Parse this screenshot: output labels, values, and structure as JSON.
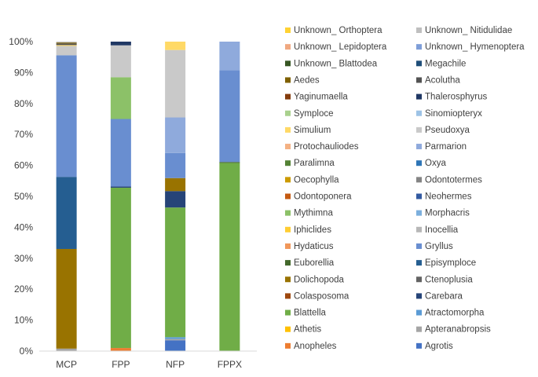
{
  "chart_data": {
    "type": "bar",
    "stacked": true,
    "normalized": true,
    "categories": [
      "MCP",
      "FPP",
      "NFP",
      "FPPX"
    ],
    "ylim": [
      0,
      100
    ],
    "yticks": [
      "0%",
      "10%",
      "20%",
      "30%",
      "40%",
      "50%",
      "60%",
      "70%",
      "80%",
      "90%",
      "100%"
    ],
    "grid": false,
    "legend_position": "right",
    "series": [
      {
        "name": "Agrotis",
        "color": "#4472C4",
        "values": [
          0,
          0,
          3.5,
          0
        ]
      },
      {
        "name": "Anopheles",
        "color": "#ED7D31",
        "values": [
          0,
          1.0,
          0,
          0
        ]
      },
      {
        "name": "Apteranabropsis",
        "color": "#A5A5A5",
        "values": [
          0.8,
          0,
          0.4,
          0
        ]
      },
      {
        "name": "Athetis",
        "color": "#FFC000",
        "values": [
          0,
          0,
          0,
          0
        ]
      },
      {
        "name": "Atractomorpha",
        "color": "#5B9BD5",
        "values": [
          0,
          0,
          0.6,
          0
        ]
      },
      {
        "name": "Blattella",
        "color": "#70AD47",
        "values": [
          0,
          51.8,
          41.9,
          60.8
        ]
      },
      {
        "name": "Carebara",
        "color": "#264478",
        "values": [
          0,
          0.4,
          5.3,
          0
        ]
      },
      {
        "name": "Colasposoma",
        "color": "#9E480E",
        "values": [
          0,
          0,
          0,
          0
        ]
      },
      {
        "name": "Ctenoplusia",
        "color": "#636363",
        "values": [
          0,
          0,
          0,
          0
        ]
      },
      {
        "name": "Dolichopoda",
        "color": "#997300",
        "values": [
          32.2,
          0,
          4.2,
          0
        ]
      },
      {
        "name": "Episymploce",
        "color": "#255E91",
        "values": [
          23.3,
          0,
          0,
          0
        ]
      },
      {
        "name": "Euborellia",
        "color": "#43682B",
        "values": [
          0,
          0,
          0,
          0.3
        ]
      },
      {
        "name": "Gryllus",
        "color": "#698ED0",
        "values": [
          39.3,
          21.8,
          8.1,
          29.7
        ]
      },
      {
        "name": "Hydaticus",
        "color": "#F1975A",
        "values": [
          0,
          0,
          0,
          0
        ]
      },
      {
        "name": "Inocellia",
        "color": "#B7B7B7",
        "values": [
          0,
          0,
          0,
          0
        ]
      },
      {
        "name": "Iphiclides",
        "color": "#FFCD33",
        "values": [
          0,
          0,
          0,
          0
        ]
      },
      {
        "name": "Morphacris",
        "color": "#7CAFDD",
        "values": [
          0,
          0,
          0,
          0
        ]
      },
      {
        "name": "Mythimna",
        "color": "#8CC168",
        "values": [
          0,
          13.5,
          0,
          0
        ]
      },
      {
        "name": "Neohermes",
        "color": "#335AA1",
        "values": [
          0,
          0,
          0,
          0
        ]
      },
      {
        "name": "Odontoponera",
        "color": "#C55A11",
        "values": [
          0,
          0,
          0,
          0
        ]
      },
      {
        "name": "Odontotermes",
        "color": "#848484",
        "values": [
          0,
          0,
          0,
          0
        ]
      },
      {
        "name": "Oecophylla",
        "color": "#CC9A00",
        "values": [
          0,
          0,
          0,
          0
        ]
      },
      {
        "name": "Oxya",
        "color": "#2E75B6",
        "values": [
          0,
          0,
          0,
          0
        ]
      },
      {
        "name": "Paralimna",
        "color": "#548235",
        "values": [
          0,
          0,
          0,
          0
        ]
      },
      {
        "name": "Parmarion",
        "color": "#8FAADC",
        "values": [
          0,
          0,
          11.5,
          9.2
        ]
      },
      {
        "name": "Protochauliodes",
        "color": "#F4B183",
        "values": [
          0,
          0,
          0,
          0
        ]
      },
      {
        "name": "Pseudoxya",
        "color": "#C9C9C9",
        "values": [
          3.0,
          10.3,
          21.8,
          0
        ]
      },
      {
        "name": "Simulium",
        "color": "#FFD966",
        "values": [
          0.3,
          0,
          2.7,
          0
        ]
      },
      {
        "name": "Sinomiopteryx",
        "color": "#9DC3E6",
        "values": [
          0,
          0,
          0,
          0
        ]
      },
      {
        "name": "Symploce",
        "color": "#A9D18E",
        "values": [
          0,
          0,
          0,
          0
        ]
      },
      {
        "name": "Thalerosphyrus",
        "color": "#203864",
        "values": [
          0,
          1.2,
          0,
          0
        ]
      },
      {
        "name": "Yaginumaella",
        "color": "#843C0C",
        "values": [
          0,
          0,
          0,
          0
        ]
      },
      {
        "name": "Acolutha",
        "color": "#525252",
        "values": [
          0.5,
          0,
          0,
          0
        ]
      },
      {
        "name": "Aedes",
        "color": "#7F6000",
        "values": [
          0.3,
          0,
          0,
          0
        ]
      },
      {
        "name": "Megachile",
        "color": "#1F4E79",
        "values": [
          0,
          0,
          0,
          0
        ]
      },
      {
        "name": "Unknown_ Blattodea",
        "color": "#375623",
        "values": [
          0,
          0,
          0,
          0
        ]
      },
      {
        "name": "Unknown_ Hymenoptera",
        "color": "#7E9ED8",
        "values": [
          0,
          0,
          0,
          0
        ]
      },
      {
        "name": "Unknown_ Lepidoptera",
        "color": "#F0A880",
        "values": [
          0,
          0,
          0,
          0
        ]
      },
      {
        "name": "Unknown_ Nitidulidae",
        "color": "#BFBFBF",
        "values": [
          0.3,
          0,
          0,
          0
        ]
      },
      {
        "name": "Unknown_ Orthoptera",
        "color": "#FFD233",
        "values": [
          0,
          0,
          0,
          0
        ]
      }
    ]
  }
}
